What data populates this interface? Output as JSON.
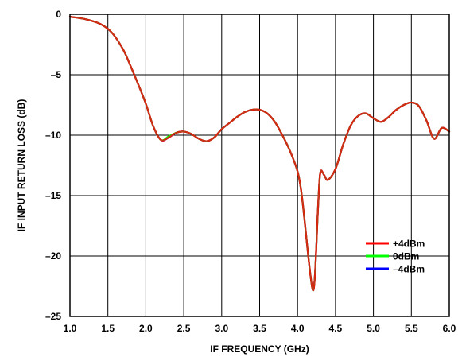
{
  "chart_data": {
    "type": "line",
    "title": "",
    "xlabel": "IF FREQUENCY (GHz)",
    "ylabel": "IF INPUT RETURN LOSS (dB)",
    "xlim": [
      1.0,
      6.0
    ],
    "ylim": [
      -25,
      0
    ],
    "x_ticks": [
      "1.0",
      "1.5",
      "2.0",
      "2.5",
      "3.0",
      "3.5",
      "4.0",
      "4.5",
      "5.0",
      "5.5",
      "6.0"
    ],
    "y_ticks": [
      "0",
      "–5",
      "–10",
      "–15",
      "–20",
      "–25"
    ],
    "grid": true,
    "legend_position": "bottom-right",
    "series": [
      {
        "name": "+4dBm",
        "color": "#ff0000",
        "x": [
          1.0,
          1.2,
          1.4,
          1.55,
          1.7,
          1.8,
          1.9,
          2.0,
          2.1,
          2.2,
          2.3,
          2.4,
          2.5,
          2.6,
          2.7,
          2.8,
          2.9,
          3.0,
          3.1,
          3.2,
          3.3,
          3.4,
          3.5,
          3.6,
          3.7,
          3.8,
          3.9,
          4.0,
          4.05,
          4.1,
          4.15,
          4.2,
          4.23,
          4.27,
          4.3,
          4.35,
          4.4,
          4.5,
          4.6,
          4.7,
          4.8,
          4.9,
          5.0,
          5.1,
          5.2,
          5.3,
          5.4,
          5.5,
          5.6,
          5.7,
          5.8,
          5.9,
          6.0
        ],
        "y": [
          -0.2,
          -0.4,
          -0.8,
          -1.5,
          -2.9,
          -4.3,
          -5.8,
          -7.4,
          -9.3,
          -10.4,
          -10.2,
          -9.8,
          -9.7,
          -9.9,
          -10.3,
          -10.5,
          -10.2,
          -9.5,
          -9.0,
          -8.5,
          -8.1,
          -7.9,
          -7.9,
          -8.2,
          -8.9,
          -10.0,
          -11.3,
          -13.0,
          -14.7,
          -17.5,
          -20.5,
          -22.8,
          -21.5,
          -16.0,
          -13.1,
          -13.3,
          -13.7,
          -12.8,
          -10.8,
          -9.2,
          -8.4,
          -8.2,
          -8.6,
          -8.9,
          -8.5,
          -7.9,
          -7.5,
          -7.3,
          -7.6,
          -8.8,
          -10.3,
          -9.4,
          -9.7
        ]
      },
      {
        "name": "0dBm",
        "color": "#00ff00",
        "x": [
          1.0,
          1.2,
          1.4,
          1.55,
          1.7,
          1.8,
          1.9,
          2.0,
          2.1,
          2.2,
          2.3,
          2.4,
          2.5,
          2.6,
          2.7,
          2.8,
          2.9,
          3.0,
          3.1,
          3.2,
          3.3,
          3.4,
          3.5,
          3.6,
          3.7,
          3.8,
          3.9,
          4.0,
          4.05,
          4.1,
          4.15,
          4.2,
          4.23,
          4.27,
          4.3,
          4.35,
          4.4,
          4.5,
          4.6,
          4.7,
          4.8,
          4.9,
          5.0,
          5.1,
          5.2,
          5.3,
          5.4,
          5.5,
          5.6,
          5.7,
          5.8,
          5.9,
          6.0
        ],
        "y": [
          -0.2,
          -0.4,
          -0.8,
          -1.5,
          -2.9,
          -4.3,
          -5.8,
          -7.4,
          -9.3,
          -10.4,
          -10.1,
          -9.8,
          -9.7,
          -9.9,
          -10.3,
          -10.5,
          -10.2,
          -9.5,
          -9.0,
          -8.5,
          -8.1,
          -7.9,
          -7.9,
          -8.2,
          -8.9,
          -10.0,
          -11.3,
          -13.0,
          -14.7,
          -17.5,
          -20.5,
          -22.8,
          -21.5,
          -16.0,
          -13.1,
          -13.3,
          -13.7,
          -12.8,
          -10.8,
          -9.2,
          -8.4,
          -8.2,
          -8.6,
          -8.9,
          -8.5,
          -7.9,
          -7.5,
          -7.3,
          -7.6,
          -8.8,
          -10.3,
          -9.4,
          -9.7
        ]
      },
      {
        "name": "–4dBm",
        "color": "#0000ff",
        "x": [
          1.0,
          1.2,
          1.4,
          1.55,
          1.7,
          1.8,
          1.9,
          2.0,
          2.1,
          2.2,
          2.3,
          2.4,
          2.5,
          2.6,
          2.7,
          2.8,
          2.9,
          3.0,
          3.1,
          3.2,
          3.3,
          3.4,
          3.5,
          3.6,
          3.7,
          3.8,
          3.9,
          4.0,
          4.05,
          4.1,
          4.15,
          4.2,
          4.23,
          4.27,
          4.3,
          4.35,
          4.4,
          4.5,
          4.6,
          4.7,
          4.8,
          4.9,
          5.0,
          5.1,
          5.2,
          5.3,
          5.4,
          5.5,
          5.6,
          5.7,
          5.8,
          5.9,
          6.0
        ],
        "y": [
          -0.2,
          -0.4,
          -0.8,
          -1.5,
          -2.9,
          -4.3,
          -5.8,
          -7.4,
          -9.3,
          -10.4,
          -10.2,
          -9.8,
          -9.7,
          -9.9,
          -10.3,
          -10.5,
          -10.2,
          -9.5,
          -9.0,
          -8.5,
          -8.1,
          -7.9,
          -7.9,
          -8.2,
          -8.9,
          -10.0,
          -11.3,
          -13.0,
          -14.7,
          -17.5,
          -20.5,
          -22.8,
          -21.5,
          -16.0,
          -13.1,
          -13.3,
          -13.7,
          -12.8,
          -10.8,
          -9.2,
          -8.4,
          -8.2,
          -8.6,
          -8.9,
          -8.5,
          -7.9,
          -7.5,
          -7.3,
          -7.6,
          -8.8,
          -10.3,
          -9.4,
          -9.7
        ]
      }
    ]
  }
}
